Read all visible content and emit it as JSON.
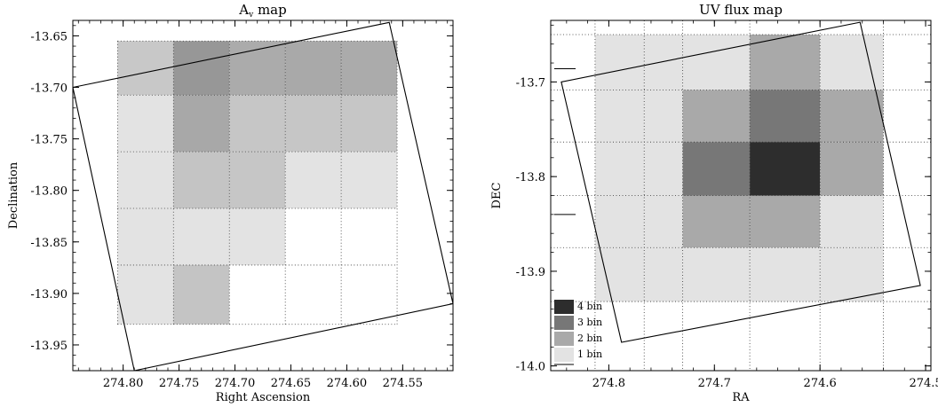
{
  "chart_data": [
    {
      "type": "heatmap",
      "title": "A",
      "title_subscript": "v",
      "title_suffix": " map",
      "xlabel": "Right Ascension",
      "ylabel": "Declination",
      "xlim": [
        274.845,
        274.505
      ],
      "ylim": [
        -13.975,
        -13.635
      ],
      "xticks": [
        274.8,
        274.75,
        274.7,
        274.65,
        274.6,
        274.55
      ],
      "xtick_labels": [
        "274.80",
        "274.75",
        "274.70",
        "274.65",
        "274.60",
        "274.55"
      ],
      "yticks": [
        -13.65,
        -13.7,
        -13.75,
        -13.8,
        -13.85,
        -13.9,
        -13.95
      ],
      "ytick_labels": [
        "-13.65",
        "-13.70",
        "-13.75",
        "-13.80",
        "-13.85",
        "-13.90",
        "-13.95"
      ],
      "ra_edges": [
        274.805,
        274.755,
        274.705,
        274.655,
        274.605,
        274.555
      ],
      "dec_edges": [
        -13.655,
        -13.7075,
        -13.7625,
        -13.8175,
        -13.8725,
        -13.93
      ],
      "cells": [
        [
          "#c8c8c8",
          "#979797",
          "#ababab",
          "#a9a9a9",
          "#ababab"
        ],
        [
          "#e3e3e3",
          "#a8a8a8",
          "#c6c6c6",
          "#c6c6c6",
          "#c6c6c6"
        ],
        [
          "#e3e3e3",
          "#c4c4c4",
          "#c6c6c6",
          "#e3e3e3",
          "#e3e3e3"
        ],
        [
          "#e3e3e3",
          "#e3e3e3",
          "#e3e3e3",
          null,
          null
        ],
        [
          "#e3e3e3",
          "#c4c4c4",
          null,
          null,
          null
        ]
      ],
      "footprint": [
        [
          274.845,
          -13.7
        ],
        [
          274.562,
          -13.637
        ],
        [
          274.505,
          -13.91
        ],
        [
          274.79,
          -13.975
        ]
      ]
    },
    {
      "type": "heatmap",
      "title": "UV flux map",
      "xlabel": "RA",
      "ylabel": "DEC",
      "xlim": [
        274.855,
        274.495
      ],
      "ylim": [
        -14.005,
        -13.635
      ],
      "xticks": [
        274.8,
        274.7,
        274.6,
        274.5
      ],
      "xtick_labels": [
        "274.8",
        "274.7",
        "274.6",
        "274.5"
      ],
      "yticks": [
        -13.7,
        -13.8,
        -13.9,
        -14.0
      ],
      "ytick_labels": [
        "-13.7",
        "-13.8",
        "-13.9",
        "-14.0"
      ],
      "ra_edges": [
        274.813,
        274.7665,
        274.73,
        274.6665,
        274.6,
        274.54
      ],
      "dec_edges": [
        -13.65,
        -13.7085,
        -13.7635,
        -13.82,
        -13.875,
        -13.932
      ],
      "cells": [
        [
          "#e3e3e3",
          "#e3e3e3",
          "#e3e3e3",
          "#a9a9a9",
          "#e3e3e3"
        ],
        [
          "#e3e3e3",
          "#e3e3e3",
          "#a9a9a9",
          "#777777",
          "#a9a9a9"
        ],
        [
          "#e3e3e3",
          "#e3e3e3",
          "#777777",
          "#2d2d2d",
          "#a9a9a9"
        ],
        [
          "#e3e3e3",
          "#e3e3e3",
          "#a9a9a9",
          "#a9a9a9",
          "#e3e3e3"
        ],
        [
          "#e3e3e3",
          "#e3e3e3",
          "#e3e3e3",
          "#e3e3e3",
          "#e3e3e3"
        ]
      ],
      "footprint": [
        [
          274.845,
          -13.7
        ],
        [
          274.562,
          -13.637
        ],
        [
          274.505,
          -13.915
        ],
        [
          274.788,
          -13.975
        ]
      ],
      "legend": [
        {
          "label": "4 bin",
          "color": "#2d2d2d"
        },
        {
          "label": "3 bin",
          "color": "#777777"
        },
        {
          "label": "2 bin",
          "color": "#a9a9a9"
        },
        {
          "label": "1 bin",
          "color": "#e3e3e3"
        }
      ],
      "legend_position": "bottom-left"
    }
  ]
}
